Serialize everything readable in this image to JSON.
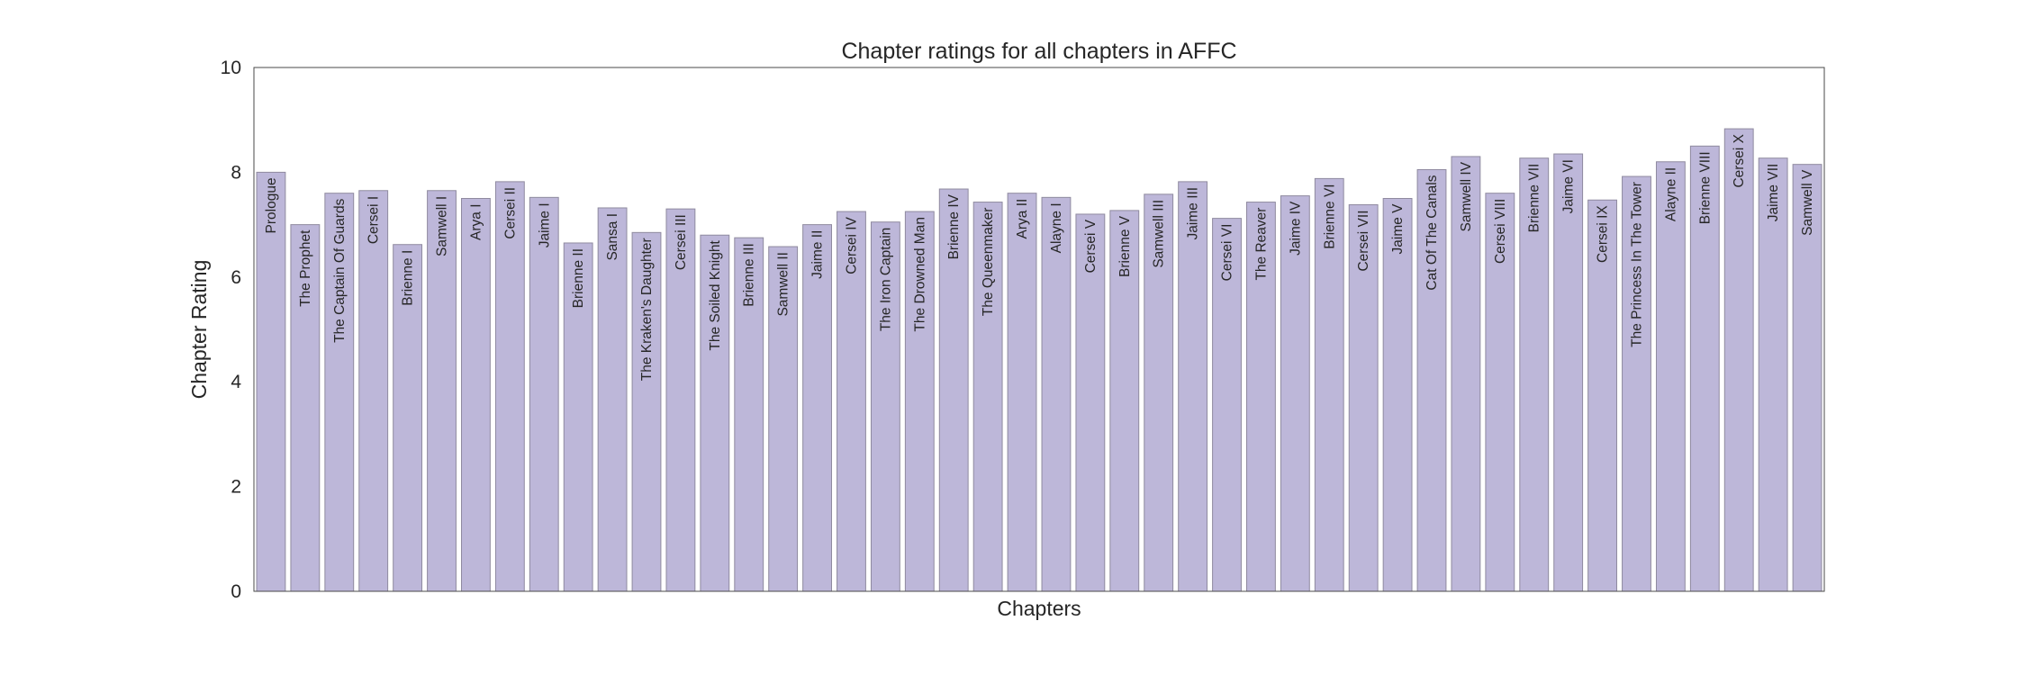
{
  "chart_data": {
    "type": "bar",
    "title": "Chapter ratings for all chapters in AFFC",
    "xlabel": "Chapters",
    "ylabel": "Chapter Rating",
    "ylim": [
      0,
      10
    ],
    "yticks": [
      "0",
      "2",
      "4",
      "6",
      "8",
      "10"
    ],
    "grid": false,
    "bar_color": "#bdb7d9",
    "bar_edge_color": "#8f8a9f",
    "categories": [
      "Prologue",
      "The Prophet",
      "The Captain Of Guards",
      "Cersei I",
      "Brienne I",
      "Samwell I",
      "Arya I",
      "Cersei II",
      "Jaime I",
      "Brienne II",
      "Sansa I",
      "The Kraken's Daughter",
      "Cersei III",
      "The Soiled Knight",
      "Brienne III",
      "Samwell II",
      "Jaime II",
      "Cersei IV",
      "The Iron Captain",
      "The Drowned Man",
      "Brienne IV",
      "The Queenmaker",
      "Arya II",
      "Alayne I",
      "Cersei V",
      "Brienne V",
      "Samwell III",
      "Jaime III",
      "Cersei VI",
      "The Reaver",
      "Jaime IV",
      "Brienne VI",
      "Cersei VII",
      "Jaime V",
      "Cat Of The Canals",
      "Samwell IV",
      "Cersei VIII",
      "Brienne VII",
      "Jaime VI",
      "Cersei IX",
      "The Princess In The Tower",
      "Alayne II",
      "Brienne VIII",
      "Cersei X",
      "Jaime VII",
      "Samwell V"
    ],
    "values": [
      8.0,
      7.0,
      7.6,
      7.65,
      6.62,
      7.65,
      7.5,
      7.82,
      7.52,
      6.65,
      7.32,
      6.85,
      7.3,
      6.8,
      6.75,
      6.58,
      7.0,
      7.25,
      7.05,
      7.25,
      7.68,
      7.43,
      7.6,
      7.52,
      7.2,
      7.27,
      7.58,
      7.82,
      7.12,
      7.43,
      7.55,
      7.88,
      7.38,
      7.5,
      8.05,
      8.3,
      7.6,
      8.27,
      8.35,
      7.47,
      7.92,
      8.2,
      8.5,
      8.83,
      8.27,
      8.15
    ]
  }
}
